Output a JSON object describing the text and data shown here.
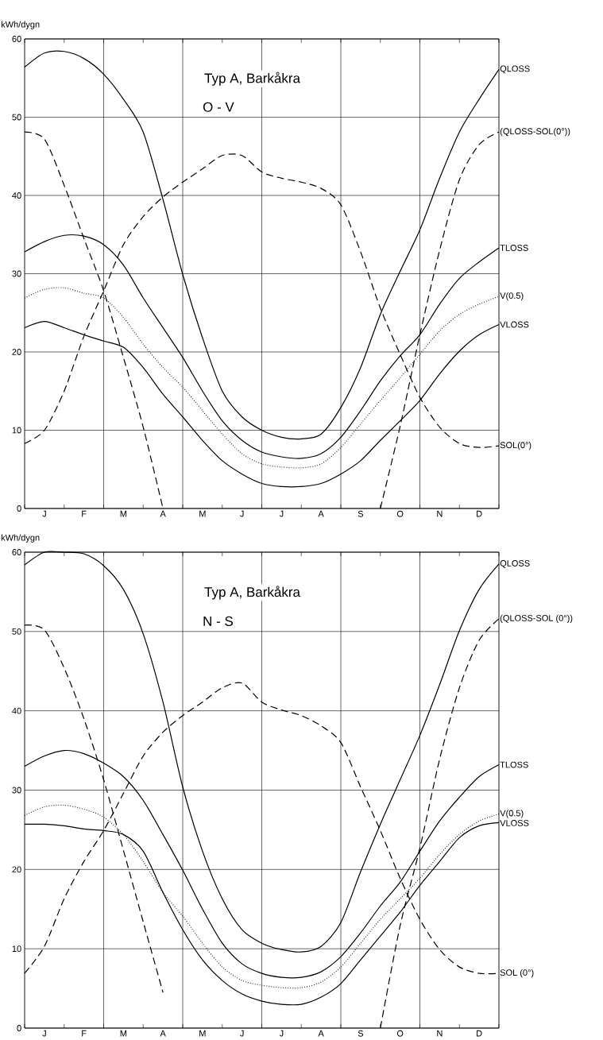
{
  "chart_data": [
    {
      "type": "line",
      "title": "Typ A, Barkåkra",
      "subtitle": "O - V",
      "ylabel": "kWh/dygn",
      "grid": true,
      "categories": [
        null,
        "J",
        null,
        "F",
        null,
        "M",
        null,
        "A",
        null,
        "M",
        null,
        "J",
        null,
        "J",
        null,
        "A",
        null,
        "S",
        null,
        "O",
        null,
        "N",
        null,
        "D",
        null
      ],
      "ylim": [
        0,
        60
      ],
      "yticks": [
        0,
        10,
        20,
        30,
        40,
        50,
        60
      ],
      "series": [
        {
          "name": "QLOSS",
          "color": "#000000",
          "line_style": "solid",
          "values": [
            56.4,
            58.2,
            58.4,
            57.5,
            55.5,
            52.3,
            48.1,
            39.5,
            29.9,
            21.8,
            15,
            11.7,
            10,
            9.1,
            8.9,
            9.5,
            12.9,
            18,
            24.8,
            30.3,
            35.6,
            42.2,
            48.1,
            52.3,
            56.1
          ]
        },
        {
          "name": "(QLOSS-SOL(0°))",
          "color": "#000000",
          "line_style": "dashed",
          "values": [
            48.1,
            47.2,
            41.3,
            34.5,
            27.8,
            19.3,
            10.4,
            0,
            null,
            null,
            null,
            null,
            null,
            null,
            null,
            null,
            null,
            null,
            0,
            10.5,
            22.2,
            33,
            42,
            46.5,
            48.1
          ]
        },
        {
          "name": "TLOSS",
          "color": "#000000",
          "line_style": "solid",
          "values": [
            32.8,
            34.1,
            34.9,
            34.8,
            33.7,
            31.1,
            26.9,
            23.1,
            19.3,
            15,
            11.2,
            8.7,
            7.2,
            6.6,
            6.4,
            7,
            9.1,
            12.5,
            16.3,
            19.5,
            22.2,
            26.1,
            29.4,
            31.5,
            33.3
          ]
        },
        {
          "name": "V(0.5)",
          "color": "#000000",
          "line_style": "dotted",
          "values": [
            26.9,
            28,
            28.2,
            27.5,
            26.9,
            24.4,
            21,
            18,
            15.5,
            12.5,
            9.5,
            7,
            5.7,
            5.3,
            5.2,
            5.7,
            7.8,
            10.8,
            13.8,
            16.7,
            19.7,
            22.7,
            24.8,
            26.1,
            27.1
          ]
        },
        {
          "name": "VLOSS",
          "color": "#000000",
          "line_style": "solid",
          "values": [
            23.1,
            23.9,
            23.1,
            22.2,
            21.4,
            20.6,
            18,
            14.6,
            11.7,
            8.7,
            6.1,
            4.4,
            3.2,
            2.8,
            2.8,
            3.2,
            4.4,
            6.1,
            8.7,
            11.2,
            13.8,
            17.2,
            20.1,
            22.2,
            23.5
          ]
        },
        {
          "name": "SOL(0°)",
          "color": "#000000",
          "line_style": "dashed",
          "values": [
            8.3,
            10,
            15,
            22,
            27.8,
            33.7,
            37.3,
            39.8,
            41.7,
            43.4,
            45.1,
            45.1,
            43,
            42.2,
            41.7,
            40.9,
            38.8,
            32.8,
            25.6,
            19.7,
            14.2,
            10.4,
            8.3,
            7.8,
            8
          ]
        }
      ]
    },
    {
      "type": "line",
      "title": "Typ A, Barkåkra",
      "subtitle": "N - S",
      "ylabel": "kWh/dygn",
      "grid": true,
      "categories": [
        null,
        "J",
        null,
        "F",
        null,
        "M",
        null,
        "A",
        null,
        "M",
        null,
        "J",
        null,
        "J",
        null,
        "A",
        null,
        "S",
        null,
        "O",
        null,
        "N",
        null,
        "D",
        null
      ],
      "ylim": [
        0,
        60
      ],
      "yticks": [
        0,
        10,
        20,
        30,
        40,
        50,
        60
      ],
      "series": [
        {
          "name": "QLOSS",
          "color": "#000000",
          "line_style": "solid",
          "values": [
            58.4,
            60,
            60,
            59.8,
            58.3,
            55.3,
            49.7,
            41.1,
            30.4,
            22.3,
            16.3,
            12.4,
            10.7,
            9.9,
            9.6,
            10.3,
            13.3,
            19.7,
            25.7,
            31.3,
            36.9,
            43.3,
            50.1,
            55.3,
            58.5
          ]
        },
        {
          "name": "(QLOSS-SOL (0°))",
          "color": "#000000",
          "line_style": "dashed",
          "values": [
            50.8,
            50.2,
            45.4,
            39,
            31.3,
            22.4,
            13.4,
            4.5,
            null,
            null,
            null,
            null,
            null,
            null,
            null,
            null,
            null,
            null,
            0,
            12.9,
            22.7,
            33.9,
            42.9,
            48.9,
            51.6
          ]
        },
        {
          "name": "TLOSS",
          "color": "#000000",
          "line_style": "solid",
          "values": [
            33,
            34.3,
            35,
            34.6,
            33.4,
            31.7,
            28.7,
            24.4,
            19.9,
            15,
            10.7,
            8.1,
            6.9,
            6.4,
            6.4,
            7.1,
            9,
            12,
            15.4,
            18.4,
            22.3,
            26.1,
            29.1,
            31.7,
            33.2
          ]
        },
        {
          "name": "V(0.5)",
          "color": "#000000",
          "line_style": "dotted",
          "values": [
            26.8,
            27.9,
            28.1,
            27.6,
            26.6,
            24.4,
            21,
            17.1,
            14.1,
            10.7,
            7.7,
            6,
            5.4,
            5.1,
            5.1,
            5.8,
            7.7,
            10.7,
            13.7,
            16.3,
            18.9,
            21.9,
            24.4,
            26.1,
            27
          ]
        },
        {
          "name": "VLOSS",
          "color": "#000000",
          "line_style": "solid",
          "values": [
            25.7,
            25.7,
            25.5,
            25.1,
            24.9,
            24.4,
            22.3,
            17.1,
            12.4,
            8.6,
            6,
            4.3,
            3.4,
            3,
            3,
            3.9,
            5.6,
            8.6,
            11.6,
            14.6,
            18,
            21,
            24,
            25.5,
            25.9
          ]
        },
        {
          "name": "SOL (0°)",
          "color": "#000000",
          "line_style": "dashed",
          "values": [
            6.9,
            10.3,
            16.3,
            21,
            24.9,
            29.6,
            34.3,
            37.3,
            39.4,
            41.1,
            42.9,
            43.5,
            41.1,
            40.1,
            39.4,
            38.1,
            36,
            30.4,
            24.9,
            18.9,
            13.7,
            9.9,
            7.7,
            6.9,
            6.9
          ]
        }
      ]
    }
  ]
}
